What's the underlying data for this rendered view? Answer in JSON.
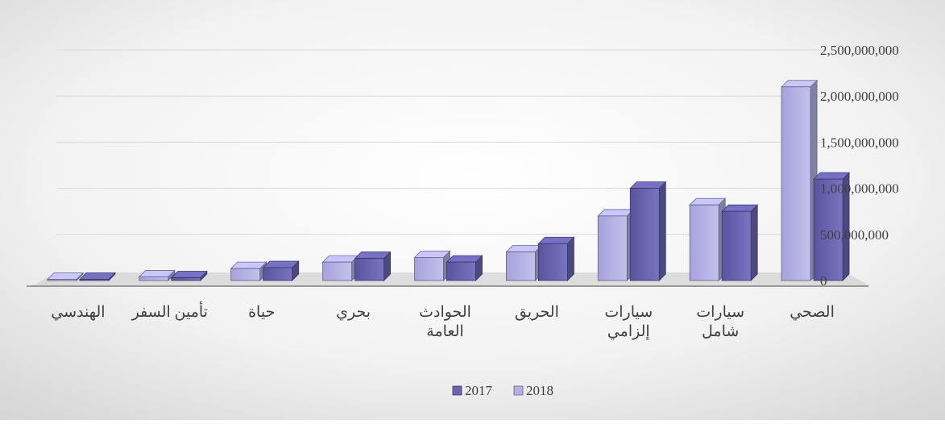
{
  "chart_data": {
    "type": "bar",
    "categories": [
      [
        "الصحي"
      ],
      [
        "سيارات",
        "شامل"
      ],
      [
        "سيارات",
        "إلزامي"
      ],
      [
        "الحريق"
      ],
      [
        "الحوادث",
        "العامة"
      ],
      [
        "بحري"
      ],
      [
        "حياة"
      ],
      [
        "تأمين السفر"
      ],
      [
        "الهندسي"
      ]
    ],
    "series": [
      {
        "name": "2017",
        "values": [
          1100000000,
          750000000,
          1000000000,
          400000000,
          200000000,
          240000000,
          140000000,
          30000000,
          5000000
        ]
      },
      {
        "name": "2018",
        "values": [
          2100000000,
          820000000,
          700000000,
          310000000,
          250000000,
          200000000,
          130000000,
          40000000,
          8000000
        ]
      }
    ],
    "ylim": [
      0,
      2500000000
    ],
    "yticks": [
      "2,500,000,000",
      "2,000,000,000",
      "1,500,000,000",
      "1,000,000,000",
      "500,000,000",
      "0"
    ],
    "legend_position": "bottom",
    "grid": true,
    "colors": {
      "2017": "#6a64b2",
      "2018": "#b4b1e4",
      "grid": "#d9d9d9",
      "floor": "#c8c8c8",
      "background_center": "#ffffff",
      "background_edge": "#d6d6d6"
    }
  }
}
